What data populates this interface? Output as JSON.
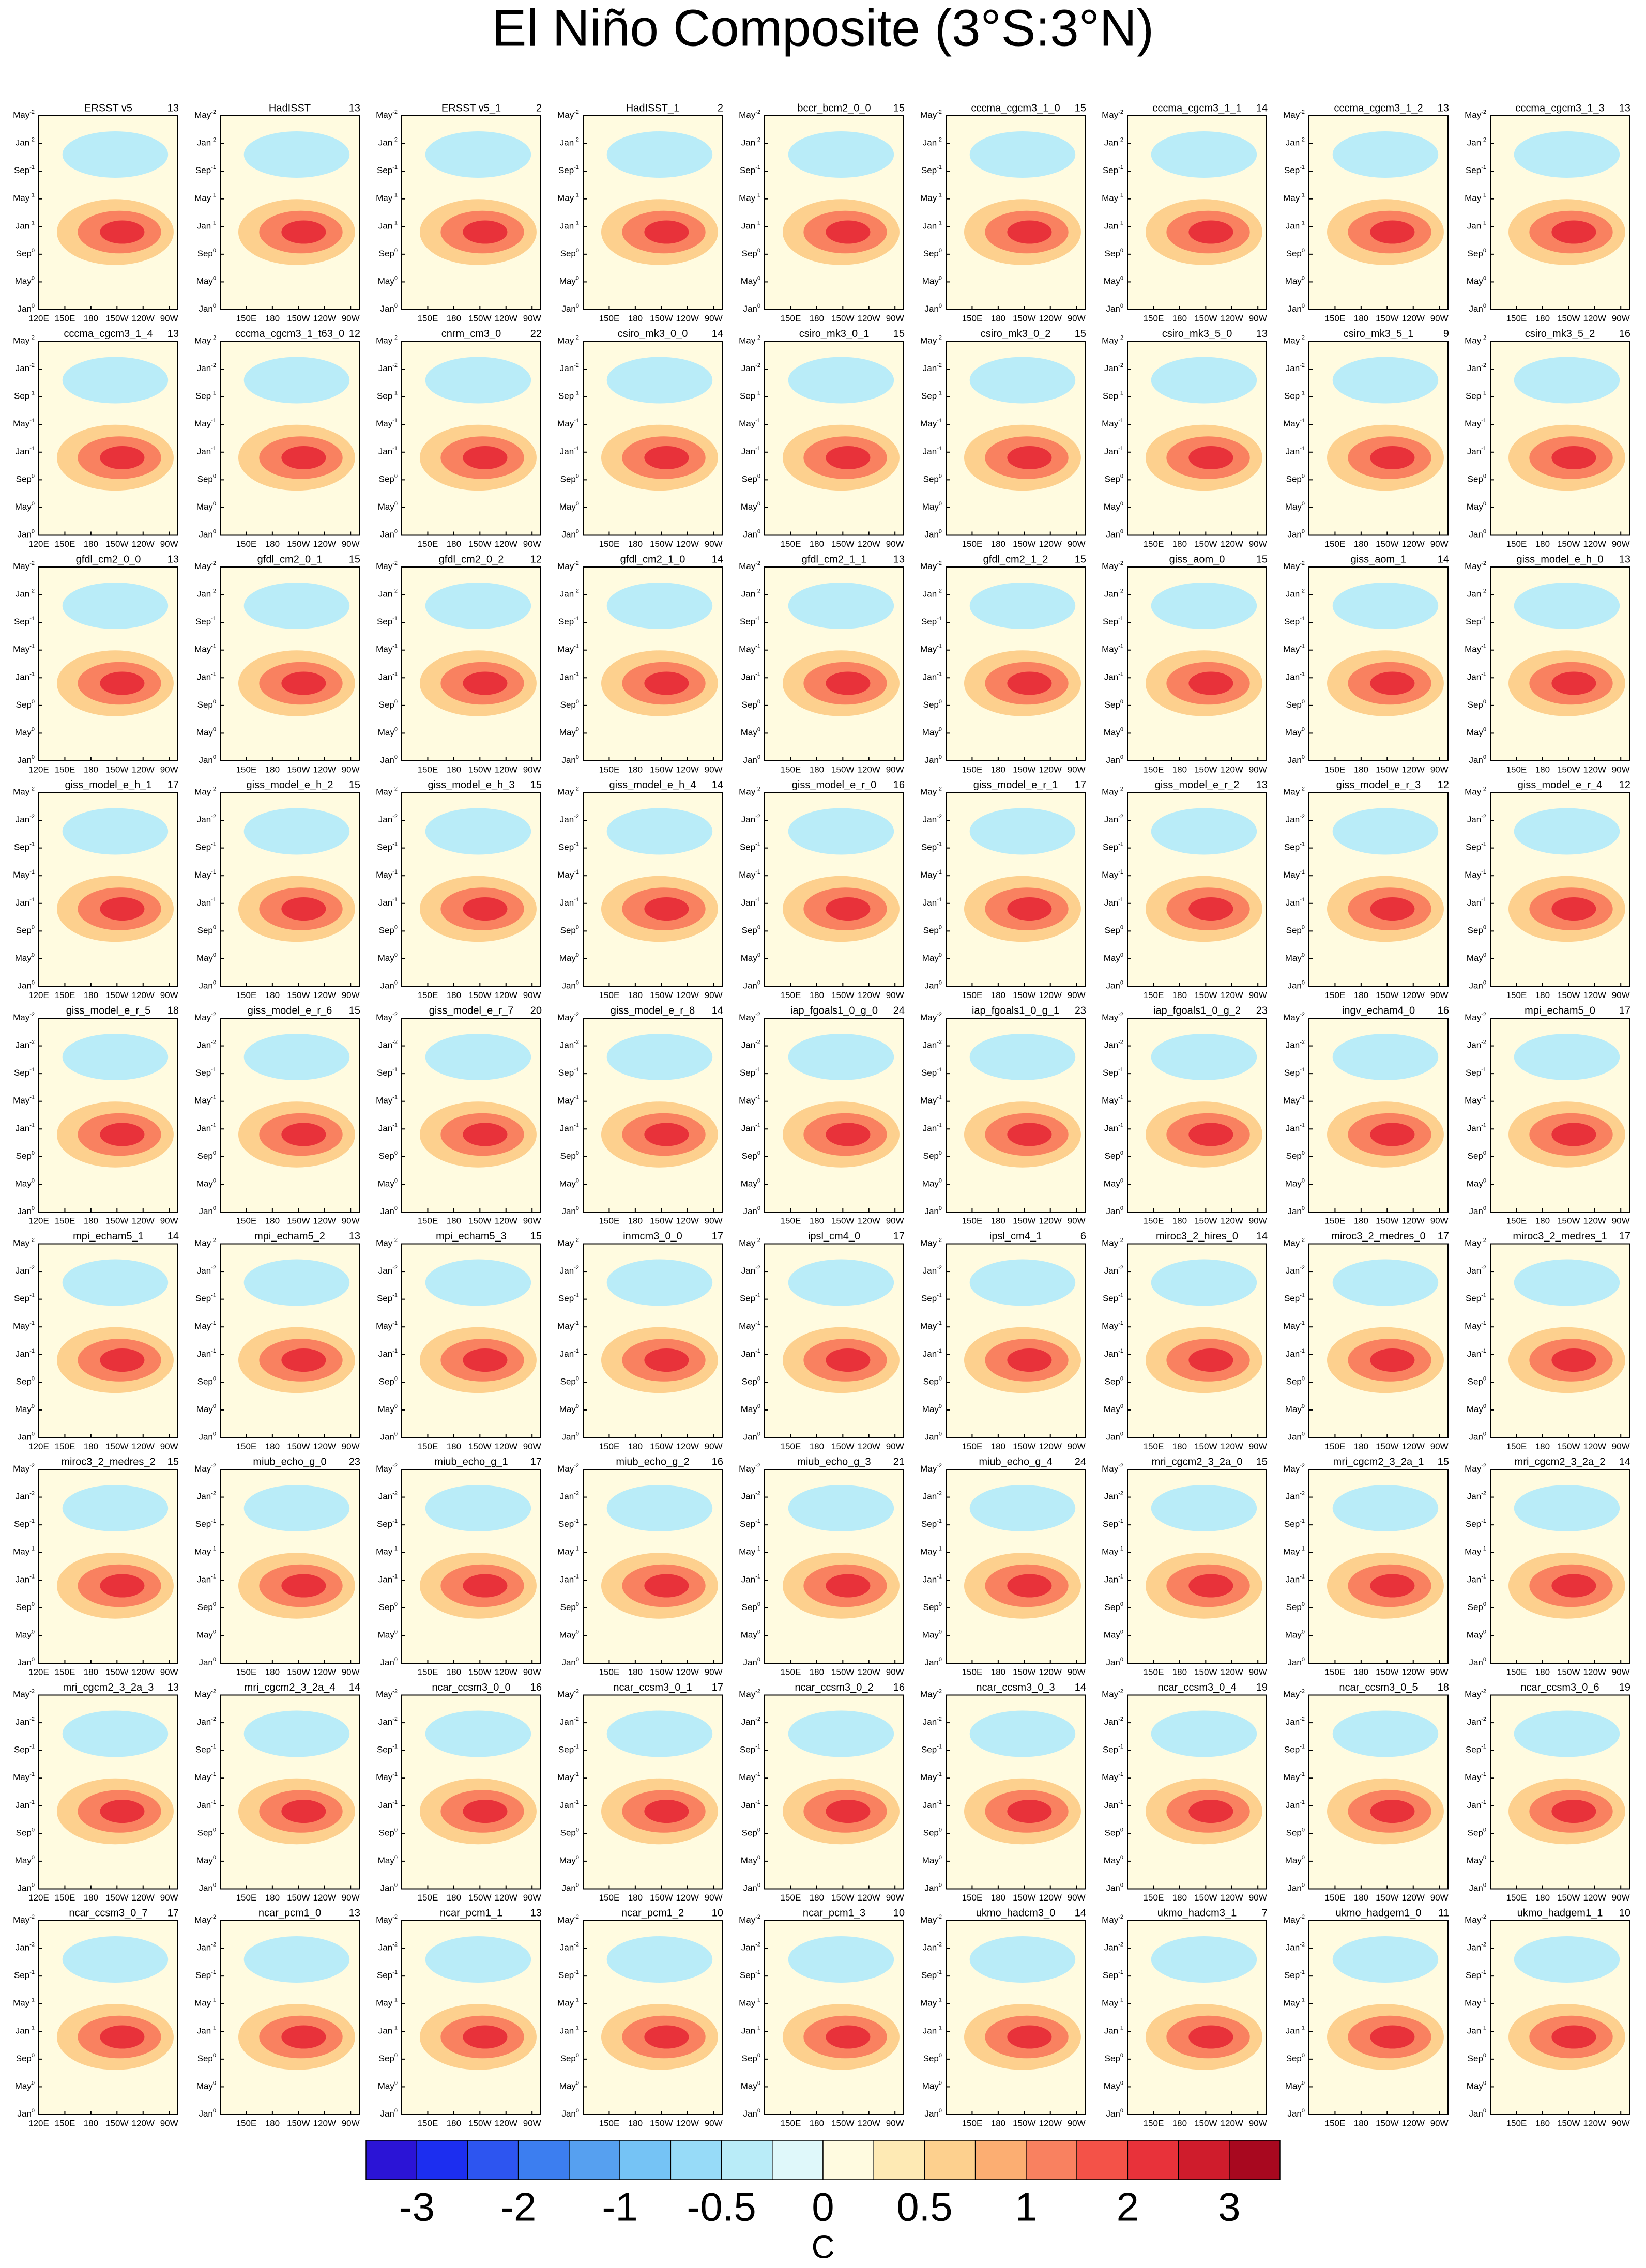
{
  "title": "El Niño Composite (3°S:3°N)",
  "panels": [
    {
      "name": "ERSST v5",
      "count": 13
    },
    {
      "name": "HadISST",
      "count": 13
    },
    {
      "name": "ERSST v5_1",
      "count": 2
    },
    {
      "name": "HadISST_1",
      "count": 2
    },
    {
      "name": "bccr_bcm2_0_0",
      "count": 15
    },
    {
      "name": "cccma_cgcm3_1_0",
      "count": 15
    },
    {
      "name": "cccma_cgcm3_1_1",
      "count": 14
    },
    {
      "name": "cccma_cgcm3_1_2",
      "count": 13
    },
    {
      "name": "cccma_cgcm3_1_3",
      "count": 13
    },
    {
      "name": "cccma_cgcm3_1_4",
      "count": 13
    },
    {
      "name": "cccma_cgcm3_1_t63_0",
      "count": 12
    },
    {
      "name": "cnrm_cm3_0",
      "count": 22
    },
    {
      "name": "csiro_mk3_0_0",
      "count": 14
    },
    {
      "name": "csiro_mk3_0_1",
      "count": 15
    },
    {
      "name": "csiro_mk3_0_2",
      "count": 15
    },
    {
      "name": "csiro_mk3_5_0",
      "count": 13
    },
    {
      "name": "csiro_mk3_5_1",
      "count": 9
    },
    {
      "name": "csiro_mk3_5_2",
      "count": 16
    },
    {
      "name": "gfdl_cm2_0_0",
      "count": 13
    },
    {
      "name": "gfdl_cm2_0_1",
      "count": 15
    },
    {
      "name": "gfdl_cm2_0_2",
      "count": 12
    },
    {
      "name": "gfdl_cm2_1_0",
      "count": 14
    },
    {
      "name": "gfdl_cm2_1_1",
      "count": 13
    },
    {
      "name": "gfdl_cm2_1_2",
      "count": 15
    },
    {
      "name": "giss_aom_0",
      "count": 15
    },
    {
      "name": "giss_aom_1",
      "count": 14
    },
    {
      "name": "giss_model_e_h_0",
      "count": 13
    },
    {
      "name": "giss_model_e_h_1",
      "count": 17
    },
    {
      "name": "giss_model_e_h_2",
      "count": 15
    },
    {
      "name": "giss_model_e_h_3",
      "count": 15
    },
    {
      "name": "giss_model_e_h_4",
      "count": 14
    },
    {
      "name": "giss_model_e_r_0",
      "count": 16
    },
    {
      "name": "giss_model_e_r_1",
      "count": 17
    },
    {
      "name": "giss_model_e_r_2",
      "count": 13
    },
    {
      "name": "giss_model_e_r_3",
      "count": 12
    },
    {
      "name": "giss_model_e_r_4",
      "count": 12
    },
    {
      "name": "giss_model_e_r_5",
      "count": 18
    },
    {
      "name": "giss_model_e_r_6",
      "count": 15
    },
    {
      "name": "giss_model_e_r_7",
      "count": 20
    },
    {
      "name": "giss_model_e_r_8",
      "count": 14
    },
    {
      "name": "iap_fgoals1_0_g_0",
      "count": 24
    },
    {
      "name": "iap_fgoals1_0_g_1",
      "count": 23
    },
    {
      "name": "iap_fgoals1_0_g_2",
      "count": 23
    },
    {
      "name": "ingv_echam4_0",
      "count": 16
    },
    {
      "name": "mpi_echam5_0",
      "count": 17
    },
    {
      "name": "mpi_echam5_1",
      "count": 14
    },
    {
      "name": "mpi_echam5_2",
      "count": 13
    },
    {
      "name": "mpi_echam5_3",
      "count": 15
    },
    {
      "name": "inmcm3_0_0",
      "count": 17
    },
    {
      "name": "ipsl_cm4_0",
      "count": 17
    },
    {
      "name": "ipsl_cm4_1",
      "count": 6
    },
    {
      "name": "miroc3_2_hires_0",
      "count": 14
    },
    {
      "name": "miroc3_2_medres_0",
      "count": 17
    },
    {
      "name": "miroc3_2_medres_1",
      "count": 17
    },
    {
      "name": "miroc3_2_medres_2",
      "count": 15
    },
    {
      "name": "miub_echo_g_0",
      "count": 23
    },
    {
      "name": "miub_echo_g_1",
      "count": 17
    },
    {
      "name": "miub_echo_g_2",
      "count": 16
    },
    {
      "name": "miub_echo_g_3",
      "count": 21
    },
    {
      "name": "miub_echo_g_4",
      "count": 24
    },
    {
      "name": "mri_cgcm2_3_2a_0",
      "count": 15
    },
    {
      "name": "mri_cgcm2_3_2a_1",
      "count": 15
    },
    {
      "name": "mri_cgcm2_3_2a_2",
      "count": 14
    },
    {
      "name": "mri_cgcm2_3_2a_3",
      "count": 13
    },
    {
      "name": "mri_cgcm2_3_2a_4",
      "count": 14
    },
    {
      "name": "ncar_ccsm3_0_0",
      "count": 16
    },
    {
      "name": "ncar_ccsm3_0_1",
      "count": 17
    },
    {
      "name": "ncar_ccsm3_0_2",
      "count": 16
    },
    {
      "name": "ncar_ccsm3_0_3",
      "count": 14
    },
    {
      "name": "ncar_ccsm3_0_4",
      "count": 19
    },
    {
      "name": "ncar_ccsm3_0_5",
      "count": 18
    },
    {
      "name": "ncar_ccsm3_0_6",
      "count": 19
    },
    {
      "name": "ncar_ccsm3_0_7",
      "count": 17
    },
    {
      "name": "ncar_pcm1_0",
      "count": 13
    },
    {
      "name": "ncar_pcm1_1",
      "count": 13
    },
    {
      "name": "ncar_pcm1_2",
      "count": 10
    },
    {
      "name": "ncar_pcm1_3",
      "count": 10
    },
    {
      "name": "ukmo_hadcm3_0",
      "count": 14
    },
    {
      "name": "ukmo_hadcm3_1",
      "count": 7
    },
    {
      "name": "ukmo_hadgem1_0",
      "count": 11
    },
    {
      "name": "ukmo_hadgem1_1",
      "count": 10
    }
  ],
  "y_labels": [
    {
      "month": "May",
      "sup": "-2"
    },
    {
      "month": "Jan",
      "sup": "-2"
    },
    {
      "month": "Sep",
      "sup": "-1"
    },
    {
      "month": "May",
      "sup": "-1"
    },
    {
      "month": "Jan",
      "sup": "-1"
    },
    {
      "month": "Sep",
      "sup": "0"
    },
    {
      "month": "May",
      "sup": "0"
    },
    {
      "month": "Jan",
      "sup": "0"
    }
  ],
  "x_labels": [
    "120E",
    "150E",
    "180",
    "150W",
    "120W",
    "90W"
  ],
  "colorbar": {
    "colors": [
      "#2b14d6",
      "#1c2ef0",
      "#2d55f0",
      "#3c7ef0",
      "#56a0f0",
      "#75c3f5",
      "#97dbf8",
      "#b9ecf8",
      "#dff8fa",
      "#fffbe0",
      "#feeab4",
      "#fdd08e",
      "#fcae72",
      "#f98160",
      "#f45248",
      "#e8323a",
      "#cf1c2c",
      "#a8081f"
    ],
    "ticks": [
      -3,
      -2,
      -1,
      -0.5,
      0,
      0.5,
      1,
      2,
      3
    ],
    "unit": "C"
  }
}
